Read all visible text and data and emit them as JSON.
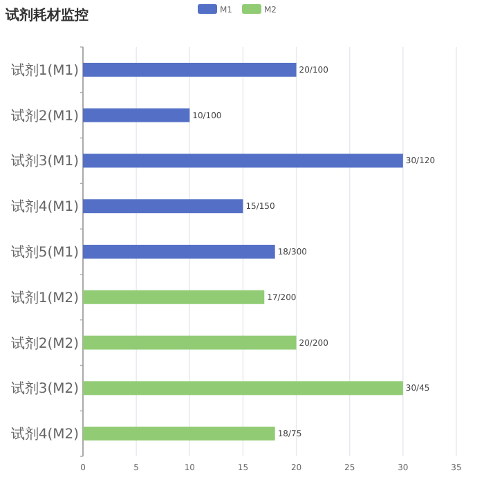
{
  "chart_data": {
    "type": "bar",
    "orientation": "horizontal",
    "title": "试剂耗材监控",
    "categories": [
      "试剂1(M1)",
      "试剂2(M1)",
      "试剂3(M1)",
      "试剂4(M1)",
      "试剂5(M1)",
      "试剂1(M2)",
      "试剂2(M2)",
      "试剂3(M2)",
      "试剂4(M2)"
    ],
    "series": [
      {
        "name": "M1",
        "color": "#5470c6",
        "values": [
          20,
          10,
          30,
          15,
          18,
          null,
          null,
          null,
          null
        ],
        "value_labels": [
          "20/100",
          "10/100",
          "30/120",
          "15/150",
          "18/300",
          null,
          null,
          null,
          null
        ]
      },
      {
        "name": "M2",
        "color": "#91cc75",
        "values": [
          null,
          null,
          null,
          null,
          null,
          17,
          20,
          30,
          18
        ],
        "value_labels": [
          null,
          null,
          null,
          null,
          null,
          "17/200",
          "20/200",
          "30/45",
          "18/75"
        ]
      }
    ],
    "xlim": [
      0,
      35
    ],
    "xticks": [
      0,
      5,
      10,
      15,
      20,
      25,
      30,
      35
    ],
    "grid": "x",
    "legend": "top"
  }
}
